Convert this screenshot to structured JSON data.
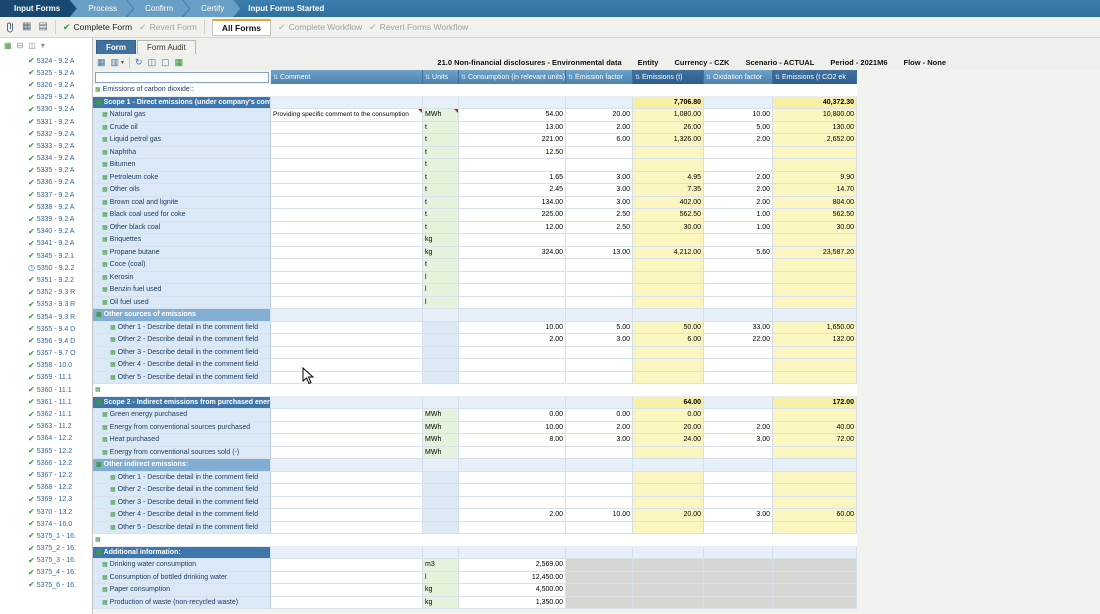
{
  "workflow_bar": {
    "tabs": [
      {
        "label": "Input Forms",
        "active": true
      },
      {
        "label": "Process",
        "active": false
      },
      {
        "label": "Confirm",
        "active": false
      },
      {
        "label": "Certify",
        "active": false
      }
    ],
    "status": "Input Forms Started"
  },
  "toolbar": {
    "complete_form": "Complete Form",
    "revert_form": "Revert Form",
    "all_forms": "All Forms",
    "complete_workflow": "Complete Workflow",
    "revert_workflow": "Revert Forms Workflow"
  },
  "form_tabs": {
    "form": "Form",
    "form_audit": "Form Audit"
  },
  "form_header": {
    "title": "21.0 Non-financial disclosures - Environmental data",
    "entity": "Entity",
    "currency": "Currency - CZK",
    "scenario": "Scenario - ACTUAL",
    "period": "Period - 2021M6",
    "flow": "Flow - None"
  },
  "filter_input": {
    "value": "",
    "placeholder": ""
  },
  "colors": {
    "accent_blue": "#3f77ad",
    "subsection_blue": "#83aed4",
    "computed_yellow": "#fbf6bf",
    "units_green": "#e6f3dc",
    "disabled_grey": "#d6d6d3",
    "check_green": "#2e9e2e"
  },
  "sidebar": {
    "items": [
      {
        "id": "5324 - 9.2 A",
        "state": "done"
      },
      {
        "id": "5325 - 9.2 A",
        "state": "done"
      },
      {
        "id": "5326 - 9.2 A",
        "state": "done"
      },
      {
        "id": "5329 - 9.2 A",
        "state": "done"
      },
      {
        "id": "5330 - 9.2 A",
        "state": "done"
      },
      {
        "id": "5331 - 9.2 A",
        "state": "done"
      },
      {
        "id": "5332 - 9.2 A",
        "state": "done"
      },
      {
        "id": "5333 - 9.2 A",
        "state": "done"
      },
      {
        "id": "5334 - 9.2 A",
        "state": "done"
      },
      {
        "id": "5335 - 9.2 A",
        "state": "done"
      },
      {
        "id": "5336 - 9.2 A",
        "state": "done"
      },
      {
        "id": "5337 - 9.2 A",
        "state": "done"
      },
      {
        "id": "5338 - 9.2 A",
        "state": "done"
      },
      {
        "id": "5339 - 9.2 A",
        "state": "done"
      },
      {
        "id": "5340 - 9.2 A",
        "state": "done"
      },
      {
        "id": "5341 - 9.2 A",
        "state": "done"
      },
      {
        "id": "5345 - 9.2.1",
        "state": "done"
      },
      {
        "id": "5350 - 9.2.2",
        "state": "progress"
      },
      {
        "id": "5351 - 9.2.2",
        "state": "done"
      },
      {
        "id": "5352 - 9.3 R",
        "state": "done"
      },
      {
        "id": "5353 - 9.3 R",
        "state": "done"
      },
      {
        "id": "5354 - 9.3 R",
        "state": "done"
      },
      {
        "id": "5355 - 9.4 D",
        "state": "done"
      },
      {
        "id": "5356 - 9.4 D",
        "state": "done"
      },
      {
        "id": "5357 - 9.7 O",
        "state": "done"
      },
      {
        "id": "5358 - 10.0",
        "state": "done"
      },
      {
        "id": "5359 - 11.1",
        "state": "done"
      },
      {
        "id": "5360 - 11.1",
        "state": "done"
      },
      {
        "id": "5361 - 11.1",
        "state": "done"
      },
      {
        "id": "5362 - 11.1",
        "state": "done"
      },
      {
        "id": "5363 - 11.2",
        "state": "done"
      },
      {
        "id": "5364 - 12.2",
        "state": "done"
      },
      {
        "id": "5365 - 12.2",
        "state": "done"
      },
      {
        "id": "5366 - 12.2",
        "state": "done"
      },
      {
        "id": "5367 - 12.2",
        "state": "done"
      },
      {
        "id": "5368 - 12.2",
        "state": "done"
      },
      {
        "id": "5369 - 12.3",
        "state": "done"
      },
      {
        "id": "5370 - 13.2",
        "state": "done"
      },
      {
        "id": "5374 - 16.0",
        "state": "done"
      },
      {
        "id": "5375_1 - 16.",
        "state": "done"
      },
      {
        "id": "5375_2 - 16.",
        "state": "done"
      },
      {
        "id": "5375_3 - 16.",
        "state": "done"
      },
      {
        "id": "5375_4 - 16.",
        "state": "done"
      },
      {
        "id": "5375_6 - 16.",
        "state": "done"
      }
    ]
  },
  "table": {
    "columns": [
      {
        "label": "Comment",
        "dark": false
      },
      {
        "label": "Units",
        "dark": false
      },
      {
        "label": "Consumption (in relevant units)",
        "dark": false
      },
      {
        "label": "Emission factor",
        "dark": false
      },
      {
        "label": "Emissions (t)",
        "dark": true
      },
      {
        "label": "Oxidation factor",
        "dark": false
      },
      {
        "label": "Emissions (t CO2 ek",
        "dark": true
      }
    ],
    "rows": [
      {
        "type": "group",
        "label": "Emissions of carbon dioxide::"
      },
      {
        "type": "section",
        "label": "Scope 1 - Direct emissions (under company's control)",
        "em": "7,706.80",
        "co2": "40,372.30"
      },
      {
        "type": "item",
        "label": "Natural gas",
        "comment": "Providing specific comment to the consumption",
        "comment_flag": true,
        "units": "MWh",
        "units_flag": true,
        "cons": "54.00",
        "ef": "20.00",
        "em": "1,080.00",
        "oxf": "10.00",
        "co2": "10,800.00"
      },
      {
        "type": "item",
        "label": "Crude oil",
        "units": "t",
        "cons": "13.00",
        "ef": "2.00",
        "em": "26.00",
        "oxf": "5.00",
        "co2": "130.00"
      },
      {
        "type": "item",
        "label": "Liquid petrol gas",
        "units": "t",
        "cons": "221.00",
        "ef": "6.00",
        "em": "1,326.00",
        "oxf": "2.00",
        "co2": "2,652.00"
      },
      {
        "type": "item",
        "label": "Naphtha",
        "units": "t",
        "cons": "12.50"
      },
      {
        "type": "item",
        "label": "Bitumen",
        "units": "t"
      },
      {
        "type": "item",
        "label": "Petroleum coke",
        "units": "t",
        "cons": "1.65",
        "ef": "3.00",
        "em": "4.95",
        "oxf": "2.00",
        "co2": "9.90"
      },
      {
        "type": "item",
        "label": "Other oils",
        "units": "t",
        "cons": "2.45",
        "ef": "3.00",
        "em": "7.35",
        "oxf": "2.00",
        "co2": "14.70"
      },
      {
        "type": "item",
        "label": "Brown coal and lignite",
        "units": "t",
        "cons": "134.00",
        "ef": "3.00",
        "em": "402.00",
        "oxf": "2.00",
        "co2": "804.00"
      },
      {
        "type": "item",
        "label": "Black coal used for coke",
        "units": "t",
        "cons": "225.00",
        "ef": "2.50",
        "em": "562.50",
        "oxf": "1.00",
        "co2": "562.50"
      },
      {
        "type": "item",
        "label": "Other black coal",
        "units": "t",
        "cons": "12.00",
        "ef": "2.50",
        "em": "30.00",
        "oxf": "1.00",
        "co2": "30.00"
      },
      {
        "type": "item",
        "label": "Briquettes",
        "units": "kg"
      },
      {
        "type": "item",
        "label": "Propane butane",
        "units": "kg",
        "cons": "324.00",
        "ef": "13.00",
        "em": "4,212.00",
        "oxf": "5.60",
        "co2": "23,587.20"
      },
      {
        "type": "item",
        "label": "Coce (coal)",
        "units": "t"
      },
      {
        "type": "item",
        "label": "Kerosin",
        "units": "l"
      },
      {
        "type": "item",
        "label": "Benzin fuel used",
        "units": "l"
      },
      {
        "type": "item",
        "label": "Oil fuel used",
        "units": "l"
      },
      {
        "type": "subsection",
        "label": "Other sources of emissions"
      },
      {
        "type": "item",
        "label": "Other 1 - Describe detail in the comment field",
        "indent": 2,
        "cons": "10.00",
        "ef": "5.00",
        "em": "50.00",
        "oxf": "33.00",
        "co2": "1,650.00"
      },
      {
        "type": "item",
        "label": "Other 2 - Describe detail in the comment field",
        "indent": 2,
        "cons": "2.00",
        "ef": "3.00",
        "em": "6.00",
        "oxf": "22.00",
        "co2": "132.00"
      },
      {
        "type": "item",
        "label": "Other 3 - Describe detail in the comment field",
        "indent": 2
      },
      {
        "type": "item",
        "label": "Other 4 - Describe detail in the comment field",
        "indent": 2
      },
      {
        "type": "item",
        "label": "Other 5 - Describe detail in the comment field",
        "indent": 2
      },
      {
        "type": "spacer"
      },
      {
        "type": "section",
        "label": "Scope 2 - Indirect emissions from purchased energy",
        "em": "64.00",
        "co2": "172.00"
      },
      {
        "type": "item",
        "label": "Green energy purchased",
        "units": "MWh",
        "cons": "0.00",
        "ef": "0.00",
        "em": "0.00"
      },
      {
        "type": "item",
        "label": "Energy from conventional sources purchased",
        "units": "MWh",
        "cons": "10.00",
        "ef": "2.00",
        "em": "20.00",
        "oxf": "2.00",
        "co2": "40.00"
      },
      {
        "type": "item",
        "label": "Heat purchased",
        "units": "MWh",
        "cons": "8.00",
        "ef": "3.00",
        "em": "24.00",
        "oxf": "3.00",
        "co2": "72.00"
      },
      {
        "type": "item",
        "label": "Energy from conventional sources sold (-)",
        "units": "MWh"
      },
      {
        "type": "subsection",
        "label": "Other indirect emissions:"
      },
      {
        "type": "item",
        "label": "Other 1 - Describe detail in the comment field",
        "indent": 2
      },
      {
        "type": "item",
        "label": "Other 2 - Describe detail in the comment field",
        "indent": 2
      },
      {
        "type": "item",
        "label": "Other 3 - Describe detail in the comment field",
        "indent": 2
      },
      {
        "type": "item",
        "label": "Other 4 - Describe detail in the comment field",
        "indent": 2,
        "cons": "2.00",
        "ef": "10.00",
        "em": "20.00",
        "oxf": "3.00",
        "co2": "60.00"
      },
      {
        "type": "item",
        "label": "Other 5 - Describe detail in the comment field",
        "indent": 2
      },
      {
        "type": "spacer"
      },
      {
        "type": "section",
        "label": "Additional information:"
      },
      {
        "type": "item",
        "label": "Drinking water consumption",
        "units": "m3",
        "cons": "2,569.00",
        "disabled": true
      },
      {
        "type": "item",
        "label": "Consumption of bottled drinking water",
        "units": "l",
        "cons": "12,450.00",
        "disabled": true
      },
      {
        "type": "item",
        "label": "Paper consumption",
        "units": "kg",
        "cons": "4,500.00",
        "disabled": true
      },
      {
        "type": "item",
        "label": "Production of waste (non-recycled waste)",
        "units": "kg",
        "cons": "1,350.00",
        "disabled": true
      }
    ]
  }
}
